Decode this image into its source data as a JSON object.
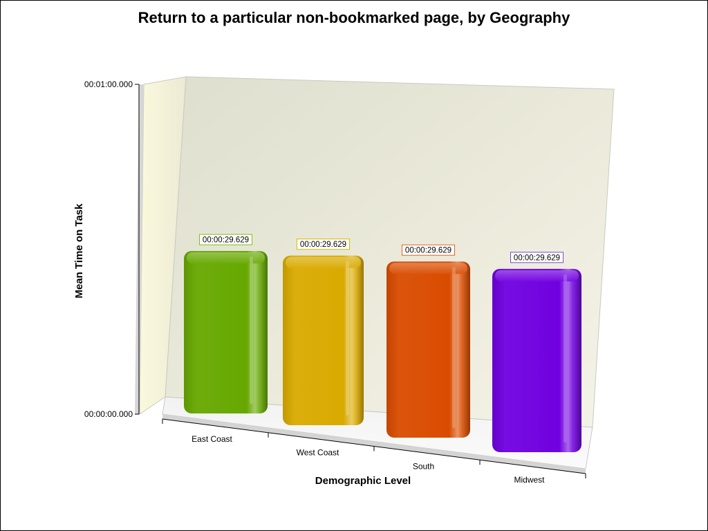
{
  "chart_data": {
    "type": "bar",
    "title": "Return to a particular non-bookmarked page, by Geography",
    "xlabel": "Demographic Level",
    "ylabel": "Mean Time on Task",
    "y_ticks": [
      "00:00:00.000",
      "00:01:00.000"
    ],
    "ylim_seconds": [
      0,
      60
    ],
    "categories": [
      "East Coast",
      "West Coast",
      "South",
      "Midwest"
    ],
    "values_seconds": [
      29.629,
      29.629,
      29.629,
      29.629
    ],
    "data_labels": [
      "00:00:29.629",
      "00:00:29.629",
      "00:00:29.629",
      "00:00:29.629"
    ],
    "colors": [
      "#66a800",
      "#d9aa00",
      "#d94c00",
      "#7000e0"
    ],
    "label_border_colors": [
      "#7fbf00",
      "#e0b800",
      "#e06020",
      "#8040e0"
    ],
    "grid": false,
    "legend": "none",
    "style": "3d-perspective"
  }
}
